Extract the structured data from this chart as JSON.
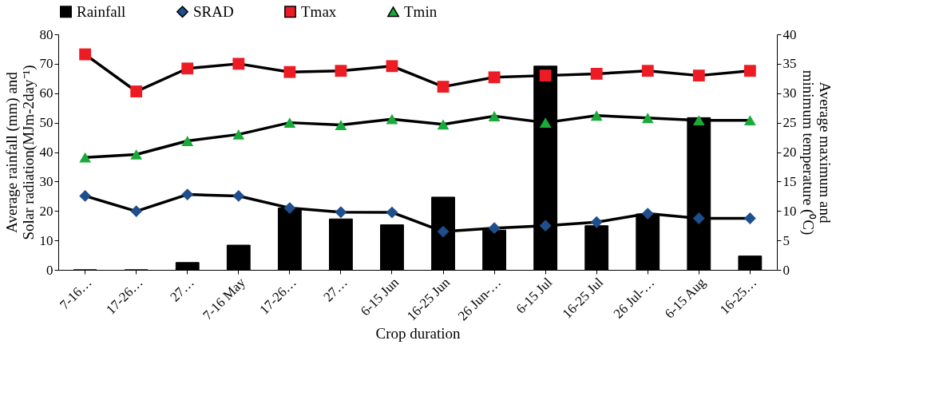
{
  "chart_data": {
    "type": "bar",
    "categories": [
      "7-16…",
      "17-26…",
      "27…",
      "7-16 May",
      "17-26…",
      "27…",
      "6-15 Jun",
      "16-25 Jun",
      "26 Jun-…",
      "6-15 Jul",
      "16-25 Jul",
      "26 Jul-…",
      "6-15 Aug",
      "16-25…"
    ],
    "xlabel": "Crop duration",
    "ylabel": "Average rainfall (mm) and\nSolar radiation(MJm-2day⁻¹)",
    "y2label": "Average maximum and\nminimum temperature (⁰C)",
    "series": [
      {
        "name": "Rainfall",
        "color": "#000000",
        "values": [
          0,
          0,
          2.5,
          8.4,
          21.0,
          17.3,
          15.3,
          24.7,
          13.5,
          69.2,
          15.0,
          19.0,
          51.7,
          4.7
        ]
      },
      {
        "name": "SRAD",
        "type": "line",
        "marker": "diamond",
        "color": "#1f4e8c",
        "values": [
          25.1,
          19.9,
          25.6,
          25.1,
          21.0,
          19.6,
          19.5,
          13.0,
          14.2,
          15.0,
          16.2,
          19.1,
          17.5,
          17.5
        ]
      },
      {
        "name": "Tmax",
        "type": "line",
        "marker": "square",
        "axis": "y2",
        "color": "#ed1c24",
        "values": [
          36.6,
          30.3,
          34.2,
          35.0,
          33.6,
          33.8,
          34.6,
          31.1,
          32.7,
          33.0,
          33.3,
          33.8,
          33.0,
          33.8
        ]
      },
      {
        "name": "Tmin",
        "type": "line",
        "marker": "triangle",
        "axis": "y2",
        "color": "#1aaa3a",
        "values": [
          19.1,
          19.6,
          21.9,
          23.0,
          25.0,
          24.6,
          25.6,
          24.7,
          26.1,
          25.0,
          26.2,
          25.8,
          25.4,
          25.4
        ]
      }
    ],
    "ylim": [
      0,
      80
    ],
    "yticks": [
      0,
      10,
      20,
      30,
      40,
      50,
      60,
      70,
      80
    ],
    "y2lim": [
      0,
      40
    ],
    "y2ticks": [
      0,
      5,
      10,
      15,
      20,
      25,
      30,
      35,
      40
    ],
    "grid": false,
    "legend": "top"
  }
}
